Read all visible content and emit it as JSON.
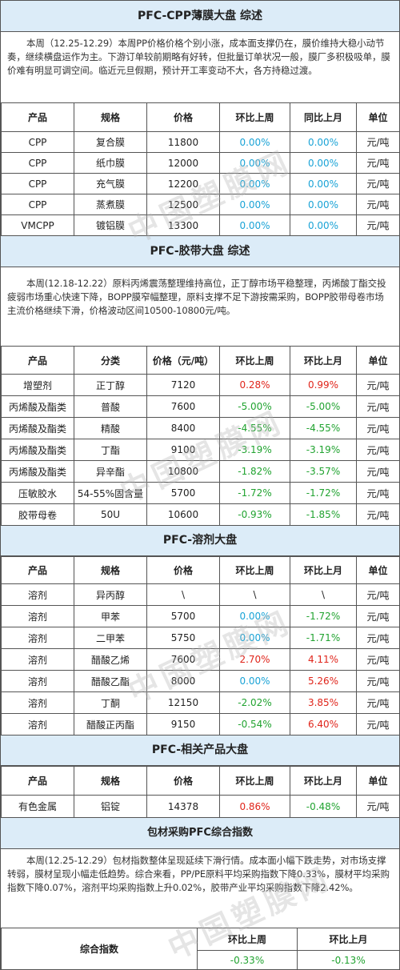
{
  "cpp": {
    "title": "PFC-CPP薄膜大盘 综述",
    "summary": "本周（12.25-12.29）本周PP价格价格个别小涨，成本面支撑仍在，膜价维持大稳小动节奏，继续横盘运作为主。下游订单较前期略有好转，但批量订单状况一般，膜厂多积极吸单，膜价难有明显可调空间。临近元旦假期，预计开工率变动不大，各方持稳过渡。",
    "headers": [
      "产品",
      "规格",
      "价格",
      "环比上周",
      "同比上月",
      "单位"
    ],
    "rows": [
      {
        "product": "CPP",
        "spec": "复合膜",
        "price": "11800",
        "wow": "0.00%",
        "mom": "0.00%",
        "unit": "元/吨"
      },
      {
        "product": "CPP",
        "spec": "纸巾膜",
        "price": "12000",
        "wow": "0.00%",
        "mom": "0.00%",
        "unit": "元/吨"
      },
      {
        "product": "CPP",
        "spec": "充气膜",
        "price": "12200",
        "wow": "0.00%",
        "mom": "0.00%",
        "unit": "元/吨"
      },
      {
        "product": "CPP",
        "spec": "蒸煮膜",
        "price": "12500",
        "wow": "0.00%",
        "mom": "0.00%",
        "unit": "元/吨"
      },
      {
        "product": "VMCPP",
        "spec": "镀铝膜",
        "price": "13300",
        "wow": "0.00%",
        "mom": "0.00%",
        "unit": "元/吨"
      }
    ]
  },
  "tape": {
    "title": "PFC-胶带大盘 综述",
    "summary": "本周(12.18-12.22）原料丙烯震荡整理维持高位，正丁醇市场平稳整理，丙烯酸丁酯交投疲弱市场重心快速下降，BOPP膜窄幅整理，原料支撑不足下游按需采购，BOPP胶带母卷市场主流价格继续下滑，价格波动区间10500-10800元/吨。",
    "headers": [
      "产品",
      "分类",
      "价格（元/吨）",
      "环比上周",
      "环比上月",
      "单位"
    ],
    "rows": [
      {
        "product": "增塑剂",
        "spec": "正丁醇",
        "price": "7120",
        "wow": "0.28%",
        "mom": "0.99%",
        "unit": "元/吨",
        "wc": "red",
        "mc": "red"
      },
      {
        "product": "丙烯酸及酯类",
        "spec": "普酸",
        "price": "7600",
        "wow": "-5.00%",
        "mom": "-5.00%",
        "unit": "元/吨",
        "wc": "green",
        "mc": "green"
      },
      {
        "product": "丙烯酸及酯类",
        "spec": "精酸",
        "price": "8400",
        "wow": "-4.55%",
        "mom": "-4.55%",
        "unit": "元/吨",
        "wc": "green",
        "mc": "green"
      },
      {
        "product": "丙烯酸及酯类",
        "spec": "丁酯",
        "price": "9100",
        "wow": "-3.19%",
        "mom": "-3.19%",
        "unit": "元/吨",
        "wc": "green",
        "mc": "green"
      },
      {
        "product": "丙烯酸及酯类",
        "spec": "异辛酯",
        "price": "10800",
        "wow": "-1.82%",
        "mom": "-3.57%",
        "unit": "元/吨",
        "wc": "green",
        "mc": "green"
      },
      {
        "product": "压敏胶水",
        "spec": "54-55%固含量",
        "price": "5700",
        "wow": "-1.72%",
        "mom": "-1.72%",
        "unit": "元/吨",
        "wc": "green",
        "mc": "green"
      },
      {
        "product": "胶带母卷",
        "spec": "50U",
        "price": "10600",
        "wow": "-0.93%",
        "mom": "-1.85%",
        "unit": "元/吨",
        "wc": "green",
        "mc": "green"
      }
    ]
  },
  "solvent": {
    "title": "PFC-溶剂大盘",
    "headers": [
      "产品",
      "规格",
      "价格",
      "环比上周",
      "环比上月",
      "单位"
    ],
    "rows": [
      {
        "product": "溶剂",
        "spec": "异丙醇",
        "price": "\\",
        "wow": "\\",
        "mom": "\\",
        "unit": "元/吨",
        "wc": "",
        "mc": ""
      },
      {
        "product": "溶剂",
        "spec": "甲苯",
        "price": "5700",
        "wow": "0.00%",
        "mom": "-1.72%",
        "unit": "元/吨",
        "wc": "blue",
        "mc": "green"
      },
      {
        "product": "溶剂",
        "spec": "二甲苯",
        "price": "5750",
        "wow": "0.00%",
        "mom": "-1.71%",
        "unit": "元/吨",
        "wc": "blue",
        "mc": "green"
      },
      {
        "product": "溶剂",
        "spec": "醋酸乙烯",
        "price": "7600",
        "wow": "2.70%",
        "mom": "4.11%",
        "unit": "元/吨",
        "wc": "red",
        "mc": "red"
      },
      {
        "product": "溶剂",
        "spec": "醋酸乙酯",
        "price": "8000",
        "wow": "0.00%",
        "mom": "5.26%",
        "unit": "元/吨",
        "wc": "blue",
        "mc": "red"
      },
      {
        "product": "溶剂",
        "spec": "丁酮",
        "price": "12150",
        "wow": "-2.02%",
        "mom": "3.85%",
        "unit": "元/吨",
        "wc": "green",
        "mc": "red"
      },
      {
        "product": "溶剂",
        "spec": "醋酸正丙酯",
        "price": "9150",
        "wow": "-0.54%",
        "mom": "6.40%",
        "unit": "元/吨",
        "wc": "green",
        "mc": "red"
      }
    ]
  },
  "related": {
    "title": "PFC-相关产品大盘",
    "headers": [
      "产品",
      "规格",
      "价格",
      "环比上周",
      "环比上月",
      "单位"
    ],
    "rows": [
      {
        "product": "有色金属",
        "spec": "铝锭",
        "price": "14378",
        "wow": "0.86%",
        "mom": "-0.48%",
        "unit": "元/吨",
        "wc": "red",
        "mc": "green"
      }
    ]
  },
  "index": {
    "title": "包材采购PFC综合指数",
    "summary": "本周(12.25-12.29）包材指数整体呈现延续下滑行情。成本面小幅下跌走势，对市场支撑转弱，膜材呈现小幅走低趋势。综合来看，PP/PE原料平均采购指数下降0.33%，膜材平均采购指数下降0.07%，溶剂平均采购指数上升0.02%，胶带产业平均采购指数下降2.42%。",
    "label": "综合指数",
    "headers": [
      "环比上周",
      "环比上月"
    ],
    "values": [
      "-0.33%",
      "-0.13%"
    ]
  },
  "watermark": "中国塑膜网",
  "colors": {
    "header_bg": "#dcecf8",
    "blue": "#1aa3d6",
    "red": "#e0251b",
    "green": "#21a330"
  }
}
